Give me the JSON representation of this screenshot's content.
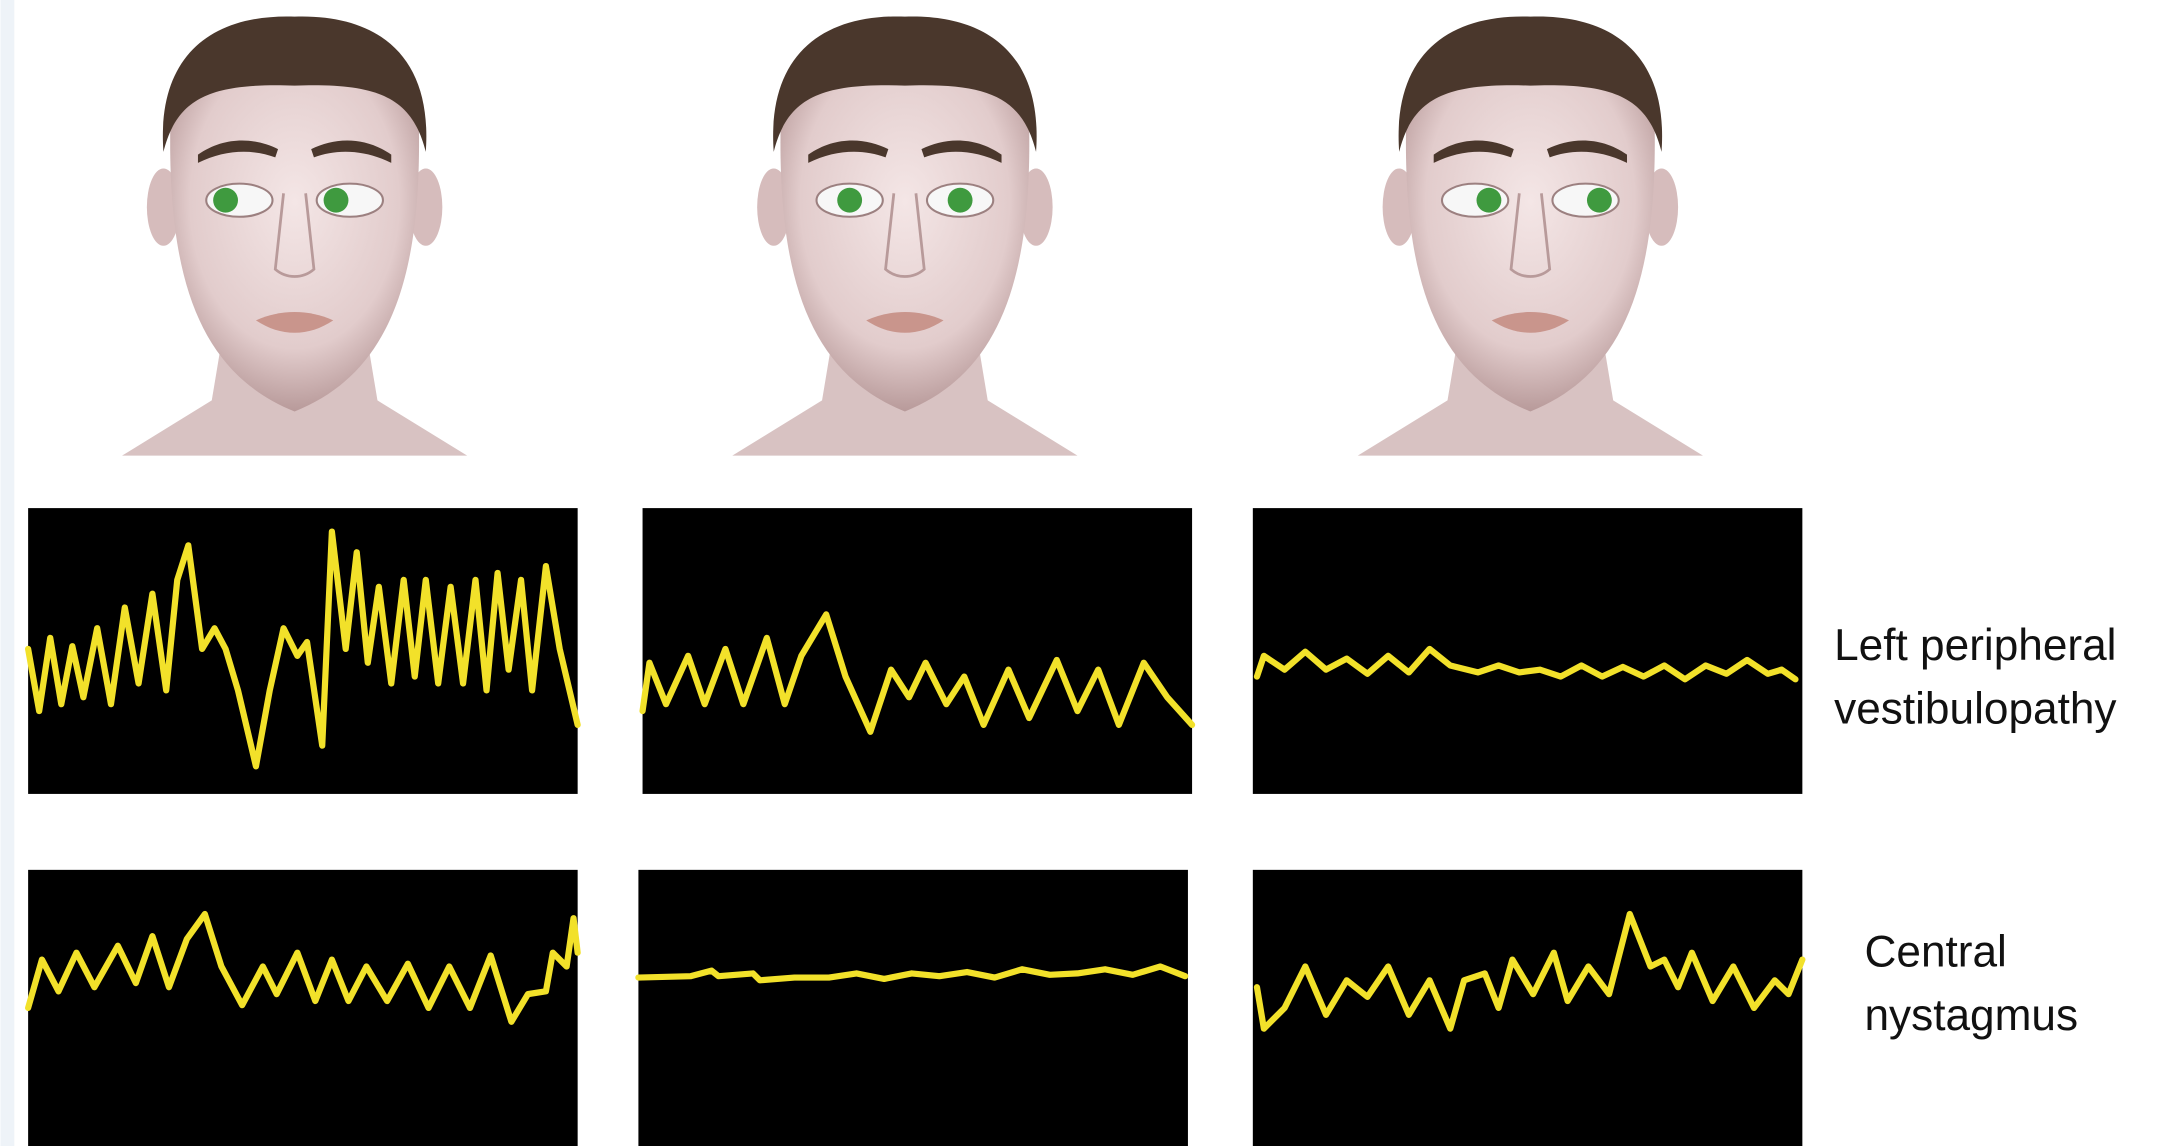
{
  "rows": [
    {
      "label_lines": [
        "Left peripheral",
        "vestibulopathy"
      ]
    },
    {
      "label_lines": [
        "Central",
        "nystagmus"
      ]
    }
  ]
}
